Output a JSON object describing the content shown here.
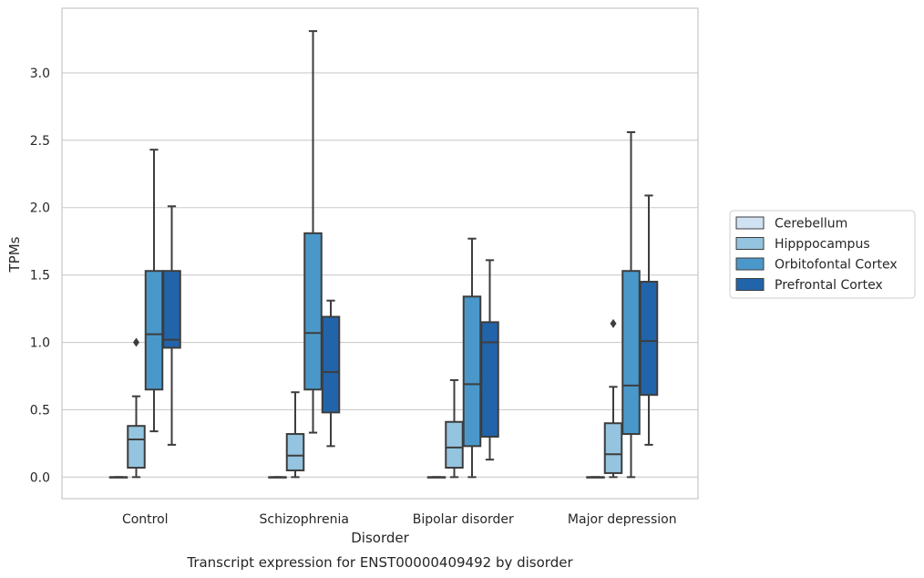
{
  "chart_data": {
    "type": "box",
    "title": "Transcript expression for ENST00000409492 by disorder",
    "xlabel": "Disorder",
    "ylabel": "TPMs",
    "ylim": [
      -0.16,
      3.48
    ],
    "yticks": [
      0.0,
      0.5,
      1.0,
      1.5,
      2.0,
      2.5,
      3.0
    ],
    "ytick_labels": [
      "0.0",
      "0.5",
      "1.0",
      "1.5",
      "2.0",
      "2.5",
      "3.0"
    ],
    "grid": true,
    "legend_position": "right",
    "categories": [
      "Control",
      "Schizophrenia",
      "Bipolar disorder",
      "Major depression"
    ],
    "series": [
      {
        "name": "Cerebellum",
        "color": "#d0e1f2",
        "boxes": [
          {
            "min": 0.0,
            "q1": 0.0,
            "median": 0.0,
            "q3": 0.0,
            "max": 0.0,
            "outliers": []
          },
          {
            "min": 0.0,
            "q1": 0.0,
            "median": 0.0,
            "q3": 0.0,
            "max": 0.0,
            "outliers": []
          },
          {
            "min": 0.0,
            "q1": 0.0,
            "median": 0.0,
            "q3": 0.0,
            "max": 0.0,
            "outliers": []
          },
          {
            "min": 0.0,
            "q1": 0.0,
            "median": 0.0,
            "q3": 0.0,
            "max": 0.0,
            "outliers": []
          }
        ]
      },
      {
        "name": "Hipppocampus",
        "color": "#94c4df",
        "boxes": [
          {
            "min": 0.0,
            "q1": 0.07,
            "median": 0.28,
            "q3": 0.38,
            "max": 0.6,
            "outliers": [
              1.0
            ]
          },
          {
            "min": 0.0,
            "q1": 0.05,
            "median": 0.16,
            "q3": 0.32,
            "max": 0.63,
            "outliers": []
          },
          {
            "min": 0.0,
            "q1": 0.07,
            "median": 0.22,
            "q3": 0.41,
            "max": 0.72,
            "outliers": []
          },
          {
            "min": 0.0,
            "q1": 0.03,
            "median": 0.17,
            "q3": 0.4,
            "max": 0.67,
            "outliers": [
              1.14
            ]
          }
        ]
      },
      {
        "name": "Orbitofontal Cortex",
        "color": "#4a98c9",
        "boxes": [
          {
            "min": 0.34,
            "q1": 0.65,
            "median": 1.06,
            "q3": 1.53,
            "max": 2.43,
            "outliers": []
          },
          {
            "min": 0.33,
            "q1": 0.65,
            "median": 1.07,
            "q3": 1.81,
            "max": 3.31,
            "outliers": []
          },
          {
            "min": 0.0,
            "q1": 0.23,
            "median": 0.69,
            "q3": 1.34,
            "max": 1.77,
            "outliers": []
          },
          {
            "min": 0.0,
            "q1": 0.32,
            "median": 0.68,
            "q3": 1.53,
            "max": 2.56,
            "outliers": []
          }
        ]
      },
      {
        "name": "Prefrontal Cortex",
        "color": "#2264a9",
        "boxes": [
          {
            "min": 0.24,
            "q1": 0.96,
            "median": 1.02,
            "q3": 1.53,
            "max": 2.01,
            "outliers": []
          },
          {
            "min": 0.23,
            "q1": 0.48,
            "median": 0.78,
            "q3": 1.19,
            "max": 1.31,
            "outliers": []
          },
          {
            "min": 0.13,
            "q1": 0.3,
            "median": 1.0,
            "q3": 1.15,
            "max": 1.61,
            "outliers": []
          },
          {
            "min": 0.24,
            "q1": 0.61,
            "median": 1.01,
            "q3": 1.45,
            "max": 2.09,
            "outliers": []
          }
        ]
      }
    ]
  }
}
